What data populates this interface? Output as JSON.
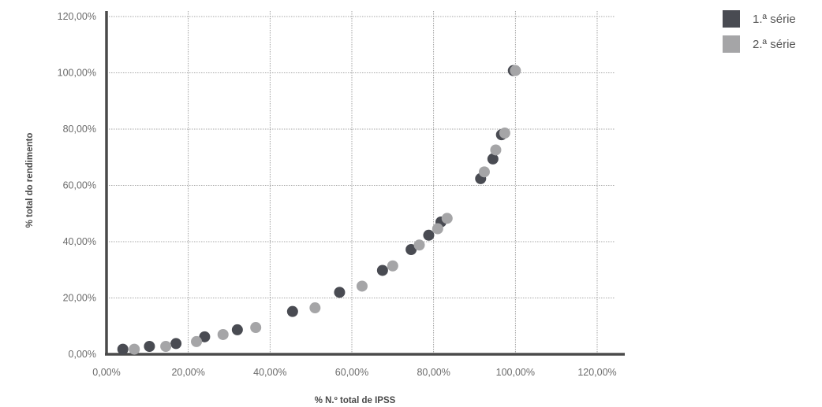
{
  "chart_data": {
    "type": "scatter",
    "xlabel": "% N.º total de IPSS",
    "ylabel": "% total do rendimento",
    "xlim": [
      0,
      120
    ],
    "ylim": [
      0,
      120
    ],
    "x_ticks": [
      "0,00%",
      "20,00%",
      "40,00%",
      "60,00%",
      "80,00%",
      "100,00%",
      "120,00%"
    ],
    "y_ticks": [
      "0,00%",
      "20,00%",
      "40,00%",
      "60,00%",
      "80,00%",
      "100,00%",
      "120,00%"
    ],
    "grid": true,
    "legend_position": "top-right",
    "series": [
      {
        "name": "1.ª série",
        "color": "#494b52",
        "points": [
          [
            4.0,
            1.8
          ],
          [
            10.5,
            2.8
          ],
          [
            17.0,
            3.8
          ],
          [
            24.0,
            6.2
          ],
          [
            32.0,
            8.7
          ],
          [
            45.5,
            15.2
          ],
          [
            57.0,
            22.0
          ],
          [
            67.5,
            29.8
          ],
          [
            74.5,
            37.2
          ],
          [
            78.8,
            42.3
          ],
          [
            81.8,
            47.0
          ],
          [
            91.5,
            62.4
          ],
          [
            94.5,
            69.4
          ],
          [
            96.6,
            78.0
          ],
          [
            99.5,
            100.8
          ]
        ]
      },
      {
        "name": "2.ª série",
        "color": "#a5a5a7",
        "points": [
          [
            6.8,
            1.8
          ],
          [
            14.5,
            2.8
          ],
          [
            22.0,
            4.5
          ],
          [
            28.5,
            7.0
          ],
          [
            36.5,
            9.5
          ],
          [
            51.0,
            16.5
          ],
          [
            62.5,
            24.2
          ],
          [
            70.0,
            31.4
          ],
          [
            76.5,
            38.8
          ],
          [
            81.0,
            44.6
          ],
          [
            83.3,
            48.3
          ],
          [
            92.4,
            64.8
          ],
          [
            95.2,
            72.6
          ],
          [
            97.4,
            78.6
          ],
          [
            100.0,
            100.8
          ]
        ]
      }
    ]
  }
}
